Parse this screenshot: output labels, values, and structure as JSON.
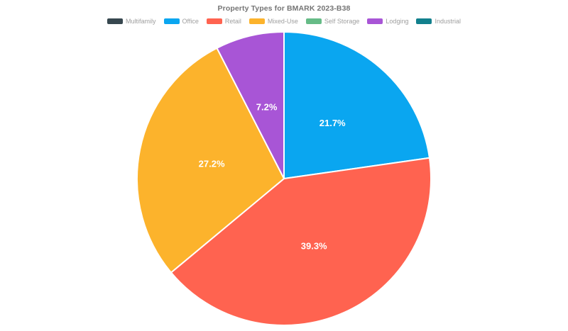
{
  "chart_data": {
    "type": "pie",
    "title": "Property Types for BMARK 2023-B38",
    "start_angle_deg": -90,
    "direction": "clockwise",
    "legend_position": "top",
    "legend": [
      {
        "label": "Multifamily",
        "color": "#37474f"
      },
      {
        "label": "Office",
        "color": "#0aa6f0"
      },
      {
        "label": "Retail",
        "color": "#ff6350"
      },
      {
        "label": "Mixed-Use",
        "color": "#fcb32c"
      },
      {
        "label": "Self Storage",
        "color": "#66bb87"
      },
      {
        "label": "Lodging",
        "color": "#a855d6"
      },
      {
        "label": "Industrial",
        "color": "#12808d"
      }
    ],
    "slices": [
      {
        "label": "Office",
        "pct": 21.7,
        "pct_label": "21.7%",
        "color": "#0aa6f0"
      },
      {
        "label": "Retail",
        "pct": 39.3,
        "pct_label": "39.3%",
        "color": "#ff6350"
      },
      {
        "label": "Mixed-Use",
        "pct": 27.2,
        "pct_label": "27.2%",
        "color": "#fcb32c"
      },
      {
        "label": "Lodging",
        "pct": 7.2,
        "pct_label": "7.2%",
        "color": "#a855d6"
      }
    ],
    "slice_border_color": "#ffffff",
    "label_color": "#ffffff"
  }
}
